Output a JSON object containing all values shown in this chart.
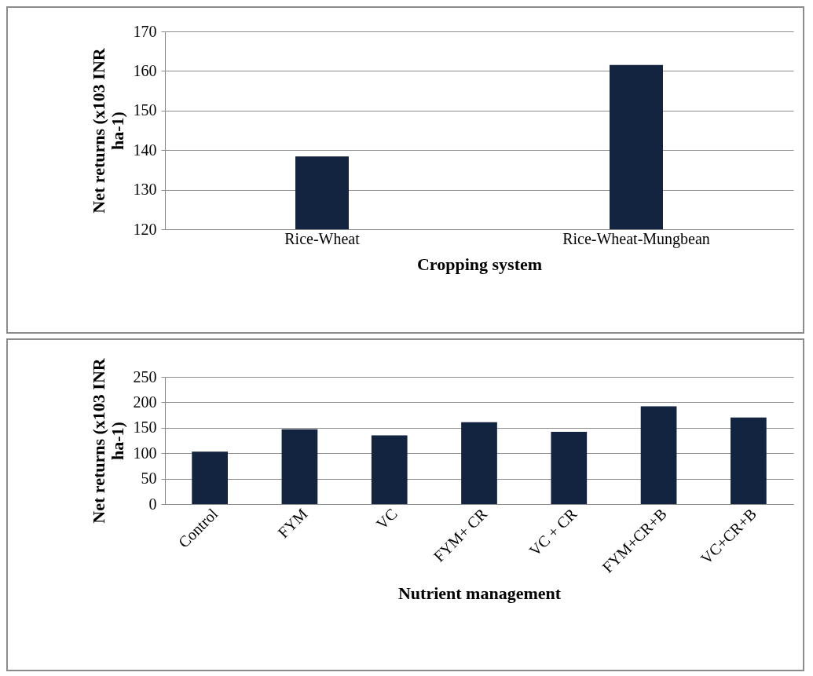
{
  "chart_data": [
    {
      "type": "bar",
      "xlabel": "Cropping system",
      "ylabel": "Net returns  (x103 INR ha-1)",
      "categories": [
        "Rice-Wheat",
        "Rice-Wheat-Mungbean"
      ],
      "values": [
        138.4,
        161.5
      ],
      "color": "#12243f",
      "ylim": [
        120,
        170
      ],
      "yticks": [
        120,
        130,
        140,
        150,
        160,
        170
      ],
      "grid": "y"
    },
    {
      "type": "bar",
      "xlabel": "Nutrient management",
      "ylabel": "Net returns  (x103 INR ha-1)",
      "categories": [
        "Control",
        "FYM",
        "VC",
        "FYM+ CR",
        "VC + CR",
        "FYM+CR+B",
        "VC+CR+B"
      ],
      "values": [
        103,
        147,
        135,
        161,
        142,
        192,
        170
      ],
      "color": "#12243f",
      "ylim": [
        0,
        250
      ],
      "yticks": [
        0,
        50,
        100,
        150,
        200,
        250
      ],
      "grid": "y"
    }
  ]
}
